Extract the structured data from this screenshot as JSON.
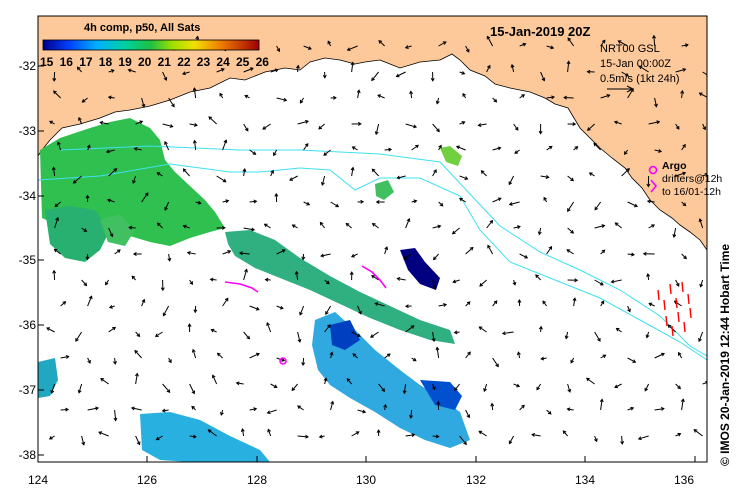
{
  "map": {
    "date_title": "15-Jan-2019 20Z",
    "colorbar": {
      "title": "4h comp, p50, All Sats",
      "labels": [
        "15",
        "16",
        "17",
        "18",
        "19",
        "20",
        "21",
        "22",
        "23",
        "24",
        "25",
        "26"
      ],
      "colors": [
        "#00008b",
        "#0033cc",
        "#0080ff",
        "#00c0ff",
        "#00d8c0",
        "#00c060",
        "#40c020",
        "#c0e000",
        "#f0d000",
        "#f08000",
        "#d03000",
        "#a00000"
      ]
    },
    "nrt_info": {
      "line1": "NRT00 GSL",
      "line2": "15-Jan 00:00Z",
      "line3": "0.5m/s (1kt 24h)"
    },
    "argo": {
      "title": "Argo",
      "line1": "drifters@12h",
      "line2": "to 16/01-12h"
    },
    "credit": "© IMOS 20-Jan-2019 12:44 Hobart Time",
    "y_ticks": [
      "-32",
      "-33",
      "-34",
      "-35",
      "-36",
      "-37",
      "-38"
    ],
    "x_ticks": [
      "124",
      "126",
      "128",
      "130",
      "132",
      "134",
      "136"
    ],
    "colors": {
      "land": "#fdc89a",
      "ocean": "#ffffff",
      "contour": "#40e0f0",
      "argo_marker": "#ff00ff",
      "drifter_arrow": "#ff0000"
    }
  }
}
